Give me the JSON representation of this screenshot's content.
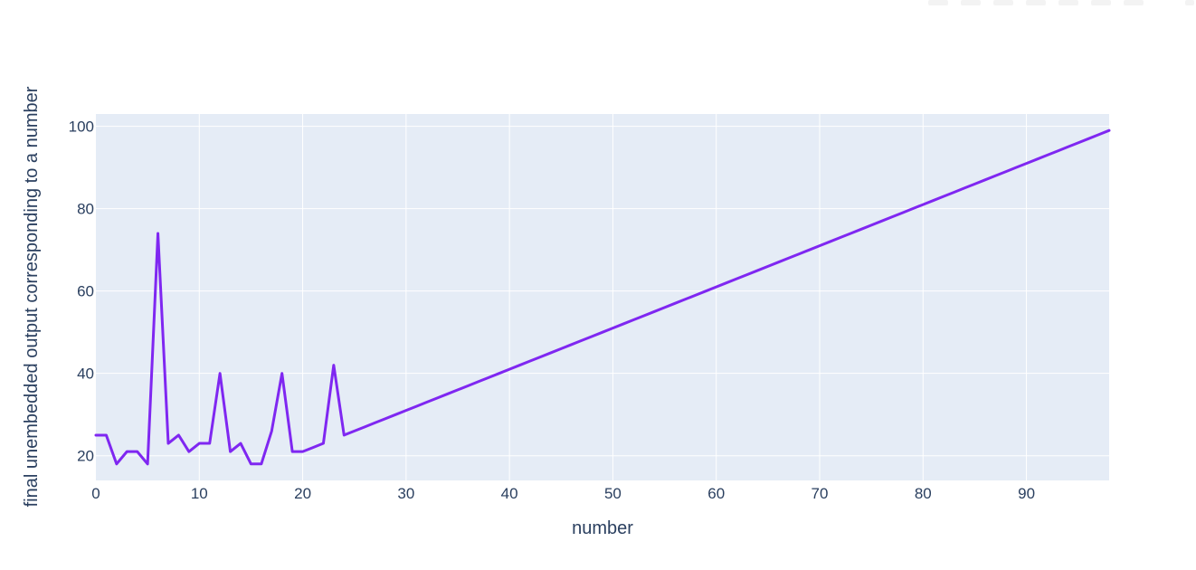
{
  "chart_data": {
    "type": "line",
    "title": "",
    "xlabel": "number",
    "ylabel": "final unembedded output corresponding to a number",
    "xlim": [
      0,
      98
    ],
    "ylim": [
      14,
      103
    ],
    "grid": true,
    "x_ticks": [
      0,
      10,
      20,
      30,
      40,
      50,
      60,
      70,
      80,
      90
    ],
    "y_ticks": [
      20,
      40,
      60,
      80,
      100
    ],
    "colors": {
      "line": "#7f27f1",
      "plot_background": "#e5ecf6",
      "grid": "#ffffff",
      "text": "#2a3f5f"
    },
    "series": [
      {
        "x": [
          0,
          1,
          2,
          3,
          4,
          5,
          6,
          7,
          8,
          9,
          10,
          11,
          12,
          13,
          14,
          15,
          16,
          17,
          18,
          19,
          20,
          21,
          22,
          23,
          24,
          25,
          26,
          27,
          28,
          29,
          30,
          31,
          32,
          33,
          34,
          35,
          36,
          37,
          38,
          39,
          40,
          41,
          42,
          43,
          44,
          45,
          46,
          47,
          48,
          49,
          50,
          51,
          52,
          53,
          54,
          55,
          56,
          57,
          58,
          59,
          60,
          61,
          62,
          63,
          64,
          65,
          66,
          67,
          68,
          69,
          70,
          71,
          72,
          73,
          74,
          75,
          76,
          77,
          78,
          79,
          80,
          81,
          82,
          83,
          84,
          85,
          86,
          87,
          88,
          89,
          90,
          91,
          92,
          93,
          94,
          95,
          96,
          97,
          98
        ],
        "y": [
          25,
          25,
          18,
          21,
          21,
          18,
          74,
          23,
          25,
          21,
          23,
          23,
          40,
          21,
          23,
          18,
          18,
          26,
          40,
          21,
          21,
          22,
          23,
          42,
          25,
          26,
          27,
          28,
          29,
          30,
          31,
          32,
          33,
          34,
          35,
          36,
          37,
          38,
          39,
          40,
          41,
          42,
          43,
          44,
          45,
          46,
          47,
          48,
          49,
          50,
          51,
          52,
          53,
          54,
          55,
          56,
          57,
          58,
          59,
          60,
          61,
          62,
          63,
          64,
          65,
          66,
          67,
          68,
          69,
          70,
          71,
          72,
          73,
          74,
          75,
          76,
          77,
          78,
          79,
          80,
          81,
          82,
          83,
          84,
          85,
          86,
          87,
          88,
          89,
          90,
          91,
          92,
          93,
          94,
          95,
          96,
          97,
          98,
          99
        ]
      }
    ]
  }
}
